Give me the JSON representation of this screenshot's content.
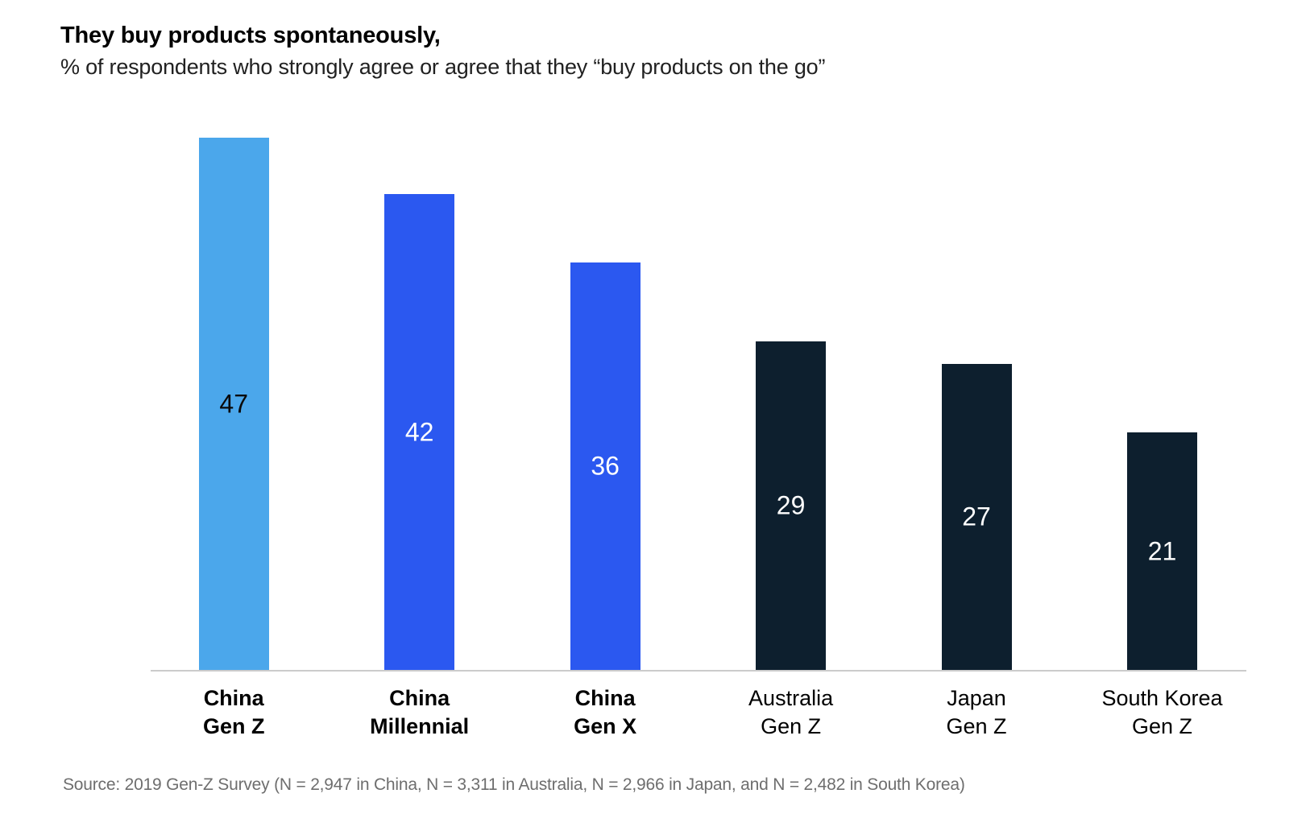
{
  "header": {
    "title": "They buy products spontaneously,",
    "subtitle": "% of respondents who strongly agree or agree that they “buy products on the go”"
  },
  "chart_data": {
    "type": "bar",
    "title": "They buy products spontaneously,",
    "subtitle": "% of respondents who strongly agree or agree that they “buy products on the go”",
    "categories": [
      "China Gen Z",
      "China Millennial",
      "China Gen X",
      "Australia Gen Z",
      "Japan Gen Z",
      "South Korea Gen Z"
    ],
    "category_lines": [
      [
        "China",
        "Gen Z"
      ],
      [
        "China",
        "Millennial"
      ],
      [
        "China",
        "Gen X"
      ],
      [
        "Australia",
        "Gen Z"
      ],
      [
        "Japan",
        "Gen Z"
      ],
      [
        "South Korea",
        "Gen Z"
      ]
    ],
    "category_bold": [
      true,
      true,
      true,
      false,
      false,
      false
    ],
    "values": [
      47,
      42,
      36,
      29,
      27,
      21
    ],
    "bar_colors": [
      "#4BA7EB",
      "#2B58F0",
      "#2B58F0",
      "#0D1F2E",
      "#0D1F2E",
      "#0D1F2E"
    ],
    "value_label_colors": [
      "#0a0a0a",
      "#ffffff",
      "#ffffff",
      "#ffffff",
      "#ffffff",
      "#ffffff"
    ],
    "xlabel": "",
    "ylabel": "",
    "ylim": [
      0,
      50
    ],
    "grid": false,
    "legend": false,
    "axis_line_color": "#cbcbcb"
  },
  "footer": {
    "source": "Source: 2019 Gen-Z Survey (N = 2,947 in China, N = 3,311 in Australia, N = 2,966 in Japan, and N = 2,482 in South Korea)"
  }
}
